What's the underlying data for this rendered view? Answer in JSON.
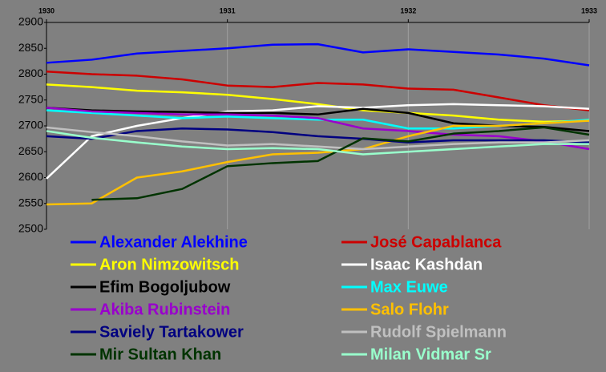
{
  "chart_data": {
    "type": "line",
    "x": [
      1930,
      1930.25,
      1930.5,
      1930.75,
      1931,
      1931.25,
      1931.5,
      1931.75,
      1932,
      1932.25,
      1932.5,
      1932.75,
      1933
    ],
    "xlim": [
      1930,
      1933
    ],
    "xticks": [
      1930,
      1931,
      1932,
      1933
    ],
    "ylim": [
      2500,
      2900
    ],
    "yticks": [
      2500,
      2550,
      2600,
      2650,
      2700,
      2750,
      2800,
      2850,
      2900
    ],
    "grid": "x",
    "series": [
      {
        "name": "Alexander Alekhine",
        "color": "#0000ff",
        "values": [
          2822,
          2828,
          2840,
          2845,
          2850,
          2857,
          2858,
          2842,
          2848,
          2843,
          2838,
          2830,
          2817
        ]
      },
      {
        "name": "José Capablanca",
        "color": "#cc0000",
        "values": [
          2805,
          2800,
          2797,
          2790,
          2778,
          2775,
          2783,
          2780,
          2772,
          2770,
          2755,
          2740,
          2730
        ]
      },
      {
        "name": "Aron Nimzowitsch",
        "color": "#ffff00",
        "values": [
          2780,
          2775,
          2768,
          2765,
          2760,
          2752,
          2742,
          2730,
          2725,
          2720,
          2712,
          2708,
          2710
        ]
      },
      {
        "name": "Isaac Kashdan",
        "color": "#ffffff",
        "values": [
          2598,
          2680,
          2700,
          2715,
          2728,
          2730,
          2738,
          2735,
          2740,
          2742,
          2740,
          2738,
          2733
        ]
      },
      {
        "name": "Efim Bogoljubow",
        "color": "#000000",
        "values": [
          2735,
          2730,
          2728,
          2727,
          2725,
          2725,
          2722,
          2733,
          2725,
          2705,
          2700,
          2698,
          2690
        ]
      },
      {
        "name": "Max Euwe",
        "color": "#00ffff",
        "values": [
          2730,
          2725,
          2720,
          2715,
          2718,
          2715,
          2712,
          2712,
          2695,
          2695,
          2700,
          2705,
          2712
        ]
      },
      {
        "name": "Akiba Rubinstein",
        "color": "#9900cc",
        "values": [
          2735,
          2728,
          2725,
          2722,
          2722,
          2720,
          2715,
          2695,
          2690,
          2683,
          2680,
          2670,
          2655
        ]
      },
      {
        "name": "Salo Flohr",
        "color": "#ffc000",
        "values": [
          2548,
          2550,
          2600,
          2612,
          2630,
          2645,
          2648,
          2655,
          2680,
          2700,
          2700,
          2705,
          2710
        ]
      },
      {
        "name": "Saviely Tartakower",
        "color": "#000080",
        "values": [
          2680,
          2675,
          2690,
          2695,
          2693,
          2688,
          2680,
          2675,
          2668,
          2672,
          2672,
          2672,
          2668
        ]
      },
      {
        "name": "Rudolf Spielmann",
        "color": "#c0c0c0",
        "values": [
          2697,
          2688,
          2680,
          2670,
          2662,
          2665,
          2660,
          2655,
          2660,
          2665,
          2668,
          2668,
          2672
        ]
      },
      {
        "name": "Mir Sultan Khan",
        "color": "#003300",
        "values": [
          null,
          2557,
          2560,
          2578,
          2622,
          2628,
          2632,
          2676,
          2670,
          2685,
          2690,
          2697,
          2683
        ]
      },
      {
        "name": "Milan Vidmar Sr",
        "color": "#99ffcc",
        "values": [
          2690,
          2677,
          2668,
          2660,
          2655,
          2657,
          2655,
          2645,
          2650,
          2655,
          2660,
          2665,
          2665
        ]
      }
    ]
  }
}
